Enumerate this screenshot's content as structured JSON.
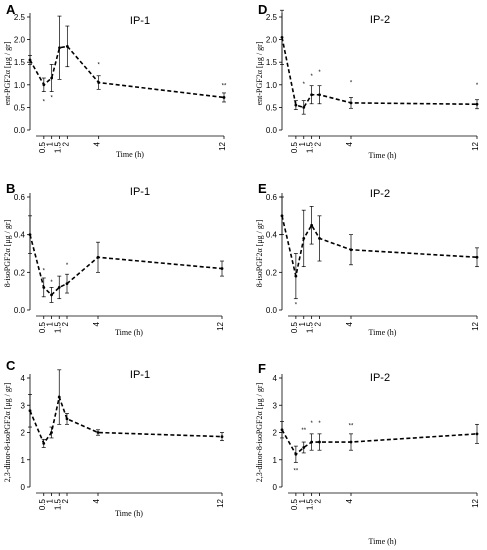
{
  "chart_data": [
    {
      "type": "line",
      "letter": "A",
      "title": "IP-1",
      "xlabel": "Time (h)",
      "ylabel": "ent-PGF2α [μg / gr]",
      "xlim": [
        0,
        12
      ],
      "ylim": [
        0,
        2.5
      ],
      "x_ticks": [
        0.5,
        1,
        1.5,
        2,
        4,
        12
      ],
      "x_tick_labels": [
        "0.5",
        "1",
        "1.5",
        "2",
        "4",
        "12"
      ],
      "y_ticks": [
        0,
        0.5,
        1,
        1.5,
        2,
        2.5
      ],
      "y_tick_labels": [
        "0.0",
        "0.5",
        "1.0",
        "1.5",
        "2.0",
        "2.5"
      ],
      "series": [
        {
          "x": [
            0,
            0.5,
            1,
            1.5,
            2,
            4,
            12
          ],
          "y": [
            1.55,
            1.0,
            1.15,
            1.82,
            1.85,
            1.05,
            0.72
          ],
          "err": [
            0.1,
            0.15,
            0.3,
            0.7,
            0.45,
            0.15,
            0.1
          ],
          "annotations": [
            {
              "x": 0.5,
              "y": 0.63,
              "text": "*"
            },
            {
              "x": 1,
              "y": 0.72,
              "text": "*"
            },
            {
              "x": 4,
              "y": 1.45,
              "text": "*"
            },
            {
              "x": 12,
              "y": 0.98,
              "text": "**"
            }
          ]
        }
      ]
    },
    {
      "type": "line",
      "letter": "D",
      "title": "IP-2",
      "xlabel": "Time (h)",
      "ylabel": "ent-PGF2α [μg / gr]",
      "xlim": [
        0,
        12
      ],
      "ylim": [
        0,
        2.5
      ],
      "x_ticks": [
        0.5,
        1,
        1.5,
        2,
        4,
        12
      ],
      "x_tick_labels": [
        "0.5",
        "1",
        "1.5",
        "2",
        "4",
        "12"
      ],
      "y_ticks": [
        0,
        0.5,
        1,
        1.5,
        2,
        2.5
      ],
      "y_tick_labels": [
        "0.0",
        "0.5",
        "1.0",
        "1.5",
        "2.0",
        "2.5"
      ],
      "series": [
        {
          "x": [
            0,
            0.5,
            1,
            1.5,
            2,
            4,
            12
          ],
          "y": [
            2.05,
            0.55,
            0.5,
            0.78,
            0.78,
            0.6,
            0.57
          ],
          "err": [
            0.6,
            0.1,
            0.15,
            0.2,
            0.2,
            0.12,
            0.1
          ],
          "annotations": [
            {
              "x": 1,
              "y": 1.02,
              "text": "*"
            },
            {
              "x": 1.5,
              "y": 1.2,
              "text": "*"
            },
            {
              "x": 2,
              "y": 1.28,
              "text": "*"
            },
            {
              "x": 4,
              "y": 1.05,
              "text": "*"
            },
            {
              "x": 12,
              "y": 1.0,
              "text": "*"
            }
          ]
        }
      ]
    },
    {
      "type": "line",
      "letter": "B",
      "title": "IP-1",
      "xlabel": "Time (h)",
      "ylabel": "8-isoPGF2α [μg / gr]",
      "xlim": [
        0,
        12
      ],
      "ylim": [
        0,
        0.6
      ],
      "x_ticks": [
        0.5,
        1,
        1.5,
        2,
        4,
        12
      ],
      "x_tick_labels": [
        "0.5",
        "1",
        "1.5",
        "2",
        "4",
        "12"
      ],
      "y_ticks": [
        0,
        0.2,
        0.4,
        0.6
      ],
      "y_tick_labels": [
        "0.0",
        "0.2",
        "0.4",
        "0.6"
      ],
      "series": [
        {
          "x": [
            0,
            0.5,
            1,
            1.5,
            2,
            4,
            12
          ],
          "y": [
            0.4,
            0.12,
            0.08,
            0.12,
            0.14,
            0.28,
            0.22
          ],
          "err": [
            0.1,
            0.05,
            0.04,
            0.06,
            0.05,
            0.08,
            0.04
          ],
          "annotations": [
            {
              "x": 0.5,
              "y": 0.21,
              "text": "*"
            },
            {
              "x": 1,
              "y": 0.15,
              "text": "*"
            },
            {
              "x": 2,
              "y": 0.24,
              "text": "*"
            }
          ]
        }
      ]
    },
    {
      "type": "line",
      "letter": "E",
      "title": "IP-2",
      "xlabel": "Time (h)",
      "ylabel": "8-isoPGF2α [μg / gr]",
      "xlim": [
        0,
        12
      ],
      "ylim": [
        0,
        0.6
      ],
      "x_ticks": [
        0.5,
        1,
        1.5,
        2,
        4,
        12
      ],
      "x_tick_labels": [
        "0.5",
        "1",
        "1.5",
        "2",
        "4",
        "12"
      ],
      "y_ticks": [
        0,
        0.2,
        0.4,
        0.6
      ],
      "y_tick_labels": [
        "0.0",
        "0.2",
        "0.4",
        "0.6"
      ],
      "series": [
        {
          "x": [
            0,
            0.5,
            1,
            1.5,
            2,
            4,
            12
          ],
          "y": [
            0.5,
            0.18,
            0.38,
            0.45,
            0.38,
            0.32,
            0.28
          ],
          "err": [
            0.1,
            0.12,
            0.15,
            0.1,
            0.12,
            0.08,
            0.05
          ],
          "annotations": [
            {
              "x": 0.5,
              "y": 0.03,
              "text": "*"
            }
          ]
        }
      ]
    },
    {
      "type": "line",
      "letter": "C",
      "title": "IP-1",
      "xlabel": "Time (h)",
      "ylabel": "2,3-dinor-8-isoPGF2α [μg / gr]",
      "xlim": [
        0,
        12
      ],
      "ylim": [
        0,
        4
      ],
      "x_ticks": [
        0.5,
        1,
        1.5,
        2,
        4,
        12
      ],
      "x_tick_labels": [
        "0.5",
        "1",
        "1.5",
        "2",
        "4",
        "12"
      ],
      "y_ticks": [
        0,
        1,
        2,
        3,
        4
      ],
      "y_tick_labels": [
        "0",
        "1",
        "2",
        "3",
        "4"
      ],
      "series": [
        {
          "x": [
            0,
            0.5,
            1,
            1.5,
            2,
            4,
            12
          ],
          "y": [
            2.8,
            1.6,
            2.0,
            3.3,
            2.5,
            2.0,
            1.85
          ],
          "err": [
            0.6,
            0.15,
            0.2,
            1.0,
            0.2,
            0.1,
            0.15
          ],
          "annotations": []
        }
      ]
    },
    {
      "type": "line",
      "letter": "F",
      "title": "IP-2",
      "xlabel": "Time (h)",
      "ylabel": "2,3-dinor-8-isoPGF2α [μg / gr]",
      "xlim": [
        0,
        12
      ],
      "ylim": [
        0,
        4
      ],
      "x_ticks": [
        0.5,
        1,
        1.5,
        2,
        4,
        12
      ],
      "x_tick_labels": [
        "0.5",
        "1",
        "1.5",
        "2",
        "4",
        "12"
      ],
      "y_ticks": [
        0,
        1,
        2,
        3,
        4
      ],
      "y_tick_labels": [
        "0",
        "1",
        "2",
        "3",
        "4"
      ],
      "series": [
        {
          "x": [
            0,
            0.5,
            1,
            1.5,
            2,
            4,
            12
          ],
          "y": [
            2.1,
            1.2,
            1.45,
            1.65,
            1.65,
            1.65,
            1.95
          ],
          "err": [
            0.3,
            0.3,
            0.2,
            0.3,
            0.3,
            0.3,
            0.35
          ],
          "annotations": [
            {
              "x": 0.5,
              "y": 0.6,
              "text": "**"
            },
            {
              "x": 1,
              "y": 2.1,
              "text": "**"
            },
            {
              "x": 1.5,
              "y": 2.35,
              "text": "*"
            },
            {
              "x": 2,
              "y": 2.35,
              "text": "*"
            },
            {
              "x": 4,
              "y": 2.25,
              "text": "**"
            }
          ]
        }
      ]
    }
  ]
}
